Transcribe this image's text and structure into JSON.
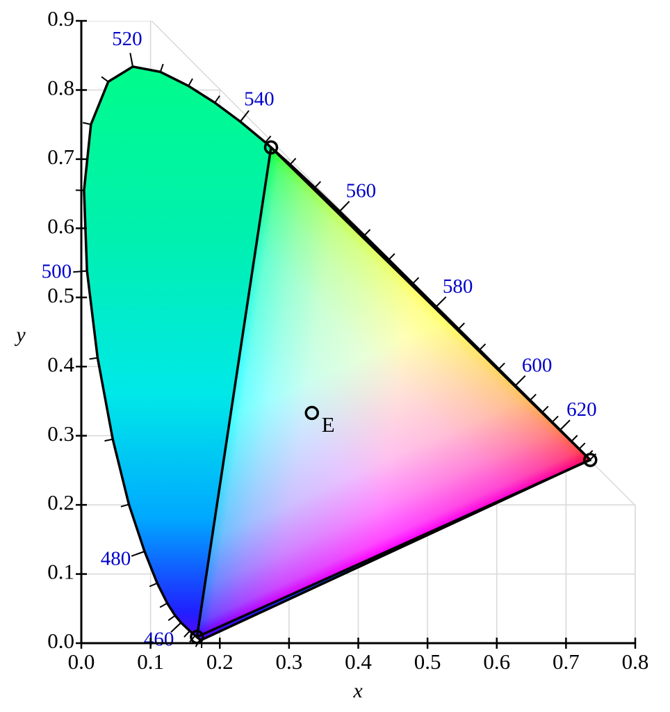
{
  "chart_data": {
    "type": "chromaticity",
    "xlabel": "x",
    "ylabel": "y",
    "xlim": [
      0,
      0.8
    ],
    "ylim": [
      0,
      0.9
    ],
    "xticks": [
      {
        "value": 0,
        "label": "0.0"
      },
      0.1,
      0.2,
      0.3,
      0.4,
      0.5,
      0.6,
      0.7,
      0.8
    ],
    "yticks": [
      {
        "value": 0,
        "label": "0.0"
      },
      0.1,
      0.2,
      0.3,
      0.4,
      0.5,
      0.6,
      0.7,
      0.8,
      0.9
    ],
    "grid": true,
    "locus": {
      "x": [
        0.1741,
        0.1714,
        0.1644,
        0.1566,
        0.144,
        0.1355,
        0.1241,
        0.1096,
        0.0913,
        0.0687,
        0.0454,
        0.0235,
        0.0082,
        0.0039,
        0.0139,
        0.0389,
        0.0743,
        0.1142,
        0.1547,
        0.1929,
        0.2296,
        0.2658,
        0.3016,
        0.3373,
        0.3731,
        0.4087,
        0.4441,
        0.4788,
        0.5125,
        0.5448,
        0.5752,
        0.6029,
        0.627,
        0.6482,
        0.6658,
        0.6801,
        0.6915,
        0.7079,
        0.719,
        0.73,
        0.7347
      ],
      "y": [
        0.005,
        0.0051,
        0.0109,
        0.0177,
        0.0297,
        0.0399,
        0.0578,
        0.0868,
        0.1327,
        0.2007,
        0.295,
        0.4127,
        0.5384,
        0.6548,
        0.7502,
        0.812,
        0.8338,
        0.8262,
        0.8059,
        0.7816,
        0.7543,
        0.7243,
        0.6923,
        0.6589,
        0.6245,
        0.5896,
        0.5547,
        0.5202,
        0.4866,
        0.4544,
        0.4242,
        0.3965,
        0.3725,
        0.3514,
        0.334,
        0.3197,
        0.3083,
        0.292,
        0.2809,
        0.27,
        0.2653
      ],
      "labels": [
        null,
        null,
        null,
        null,
        460,
        null,
        null,
        null,
        480,
        null,
        null,
        null,
        500,
        null,
        null,
        null,
        520,
        null,
        null,
        null,
        540,
        null,
        null,
        null,
        560,
        null,
        null,
        null,
        580,
        null,
        null,
        null,
        600,
        null,
        null,
        null,
        620,
        null,
        null,
        null,
        null
      ],
      "color": "#0000cc"
    },
    "primaries": {
      "x": [
        0.274,
        0.167,
        0.735
      ],
      "y": [
        0.717,
        0.009,
        0.265
      ],
      "colors": [
        "#00ff30",
        "#3a00ff",
        "#ff0040"
      ]
    },
    "white_point": {
      "label": "E",
      "x": 0.333,
      "y": 0.333
    }
  }
}
